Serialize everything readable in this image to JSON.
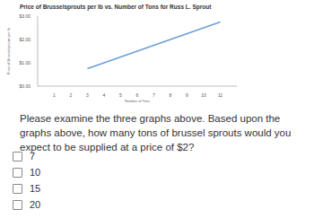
{
  "chart_data": {
    "type": "line",
    "title": "Price of Brusselsprouts per lb vs. Number of Tons for Russ L. Sprout",
    "x_label": "Number of Tons",
    "y_label": "Price of Brusselsprouts per lb",
    "x": [
      3,
      11
    ],
    "values": [
      0.75,
      2.75
    ],
    "color": "#6a9fd8",
    "xlim": [
      0,
      12
    ],
    "xticks": [
      1,
      2,
      3,
      4,
      5,
      6,
      7,
      8,
      9,
      10,
      11
    ],
    "ylim": [
      0,
      3
    ],
    "yticks": [
      {
        "value": 0,
        "label": "$0.00"
      },
      {
        "value": 1,
        "label": "$1.00"
      },
      {
        "value": 2,
        "label": "$2.00"
      },
      {
        "value": 3,
        "label": "$3.00"
      }
    ],
    "grid": false
  },
  "question": "Please examine the three graphs above. Based upon the graphs above, how many tons of brussel sprouts would you expect to be supplied at a price of $2?",
  "options": [
    "7",
    "10",
    "15",
    "20"
  ]
}
